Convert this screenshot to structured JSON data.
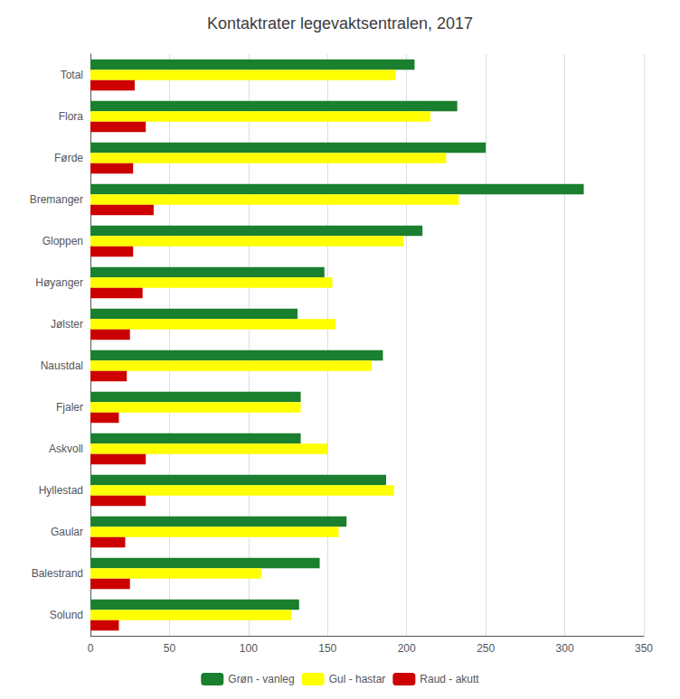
{
  "chart_data": {
    "type": "bar",
    "orientation": "horizontal",
    "title": "Kontaktrater legevaktsentralen, 2017",
    "categories": [
      "Solund",
      "Balestrand",
      "Gaular",
      "Hyllestad",
      "Askvoll",
      "Fjaler",
      "Naustdal",
      "Jølster",
      "Høyanger",
      "Gloppen",
      "Bremanger",
      "Førde",
      "Flora",
      "Total"
    ],
    "series": [
      {
        "name": "Grøn - vanleg",
        "color": "#1a7f2e",
        "values": [
          132,
          145,
          162,
          187,
          133,
          133,
          185,
          131,
          148,
          210,
          312,
          250,
          232,
          205
        ]
      },
      {
        "name": "Gul - hastar",
        "color": "#ffff00",
        "values": [
          127,
          108,
          157,
          192,
          150,
          133,
          178,
          155,
          153,
          198,
          233,
          225,
          215,
          193
        ]
      },
      {
        "name": "Raud - akutt",
        "color": "#cc0000",
        "values": [
          18,
          25,
          22,
          35,
          35,
          18,
          23,
          25,
          33,
          27,
          40,
          27,
          35,
          28
        ]
      }
    ],
    "xlim": [
      0,
      350
    ],
    "xticks": [
      0,
      50,
      100,
      150,
      200,
      250,
      300,
      350
    ],
    "grid": true,
    "legend": "bottom"
  }
}
